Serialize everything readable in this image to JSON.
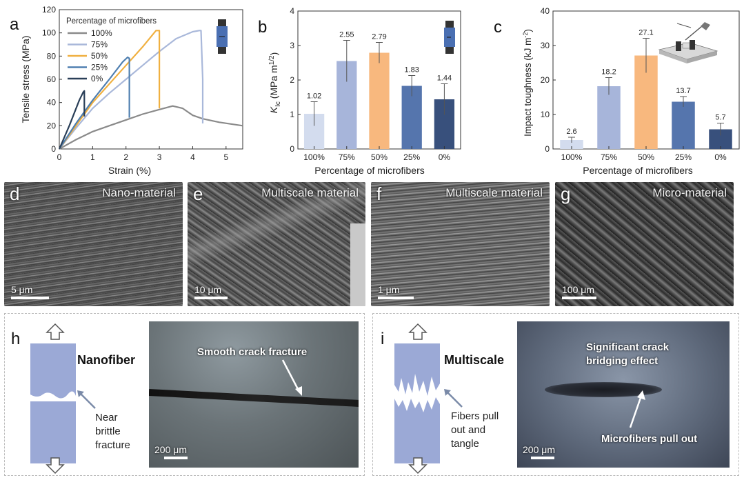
{
  "panel_labels": {
    "a": "a",
    "b": "b",
    "c": "c",
    "d": "d",
    "e": "e",
    "f": "f",
    "g": "g",
    "h": "h",
    "i": "i"
  },
  "chart_data": [
    {
      "type": "line",
      "xlabel": "Strain (%)",
      "ylabel": "Tensile stress (MPa)",
      "xlim": [
        0,
        5.5
      ],
      "ylim": [
        0,
        120
      ],
      "xticks": [
        0,
        1,
        2,
        3,
        4,
        5
      ],
      "yticks": [
        0,
        20,
        40,
        60,
        80,
        100,
        120
      ],
      "legend_title": "Percentage of microfibers",
      "legend_position": "top-left",
      "series": [
        {
          "name": "100%",
          "color": "#8a8a8a",
          "x": [
            0,
            0.5,
            1.0,
            1.5,
            2.0,
            2.5,
            3.0,
            3.4,
            3.7,
            4.0,
            4.3,
            4.8,
            5.5
          ],
          "y": [
            0,
            8,
            15,
            20,
            25,
            30,
            34,
            37,
            35,
            29,
            26,
            23,
            20
          ]
        },
        {
          "name": "75%",
          "color": "#a9b8da",
          "x": [
            0,
            0.5,
            1.0,
            1.5,
            2.0,
            2.5,
            3.0,
            3.5,
            4.0,
            4.2,
            4.25,
            4.3,
            4.3
          ],
          "y": [
            0,
            18,
            35,
            48,
            60,
            72,
            84,
            95,
            101,
            102,
            102,
            60,
            22
          ]
        },
        {
          "name": "50%",
          "color": "#f0b040",
          "x": [
            0,
            0.5,
            1.0,
            1.5,
            2.0,
            2.5,
            2.9,
            3.0,
            3.0
          ],
          "y": [
            0,
            20,
            40,
            56,
            72,
            88,
            102,
            102,
            35
          ]
        },
        {
          "name": "25%",
          "color": "#4f7fb0",
          "x": [
            0,
            0.5,
            1.0,
            1.5,
            1.9,
            2.05,
            2.1,
            2.1
          ],
          "y": [
            0,
            22,
            42,
            60,
            75,
            79,
            78,
            27
          ]
        },
        {
          "name": "0%",
          "color": "#2a3f58",
          "x": [
            0,
            0.3,
            0.6,
            0.72,
            0.75,
            0.75
          ],
          "y": [
            0,
            20,
            42,
            49,
            50,
            28
          ]
        }
      ]
    },
    {
      "type": "bar",
      "categories": [
        "100%",
        "75%",
        "50%",
        "25%",
        "0%"
      ],
      "values": [
        1.02,
        2.55,
        2.79,
        1.83,
        1.44
      ],
      "value_labels": [
        "1.02",
        "2.55",
        "2.79",
        "1.83",
        "1.44"
      ],
      "errors": [
        0.35,
        0.6,
        0.3,
        0.3,
        0.45
      ],
      "colors": [
        "#d3dcee",
        "#a7b5da",
        "#f8b87e",
        "#5575ad",
        "#38507c"
      ],
      "xlabel": "Percentage of microfibers",
      "ylabel": "KIc (MPa m1/2)",
      "ylim": [
        0,
        4
      ],
      "yticks": [
        0,
        1,
        2,
        3,
        4
      ]
    },
    {
      "type": "bar",
      "categories": [
        "100%",
        "75%",
        "50%",
        "25%",
        "0%"
      ],
      "values": [
        2.6,
        18.2,
        27.1,
        13.7,
        5.7
      ],
      "value_labels": [
        "2.6",
        "18.2",
        "27.1",
        "13.7",
        "5.7"
      ],
      "errors": [
        0.8,
        2.5,
        5.0,
        1.5,
        1.8
      ],
      "colors": [
        "#d3dcee",
        "#a7b5da",
        "#f8b87e",
        "#5575ad",
        "#38507c"
      ],
      "xlabel": "Percentage of microfibers",
      "ylabel": "Impact toughness (kJ m-2)",
      "ylim": [
        0,
        40
      ],
      "yticks": [
        0,
        10,
        20,
        30,
        40
      ]
    }
  ],
  "micrographs": {
    "d": {
      "title": "Nano-material",
      "scale": "5 μm"
    },
    "e": {
      "title": "Multiscale material",
      "scale": "10 μm"
    },
    "f": {
      "title": "Multiscale material",
      "scale": "1 μm"
    },
    "g": {
      "title": "Micro-material",
      "scale": "100 μm"
    }
  },
  "schematic_h": {
    "material": "Nanofiber",
    "note_line1": "Near",
    "note_line2": "brittle",
    "note_line3": "fracture",
    "photo_caption": "Smooth crack fracture",
    "scale": "200 μm"
  },
  "schematic_i": {
    "material": "Multiscale",
    "note_line1": "Fibers pull",
    "note_line2": "out and",
    "note_line3": "tangle",
    "photo_caption_line1": "Significant crack",
    "photo_caption_line2": "bridging effect",
    "photo_caption2": "Microfibers pull out",
    "scale": "200 μm"
  }
}
